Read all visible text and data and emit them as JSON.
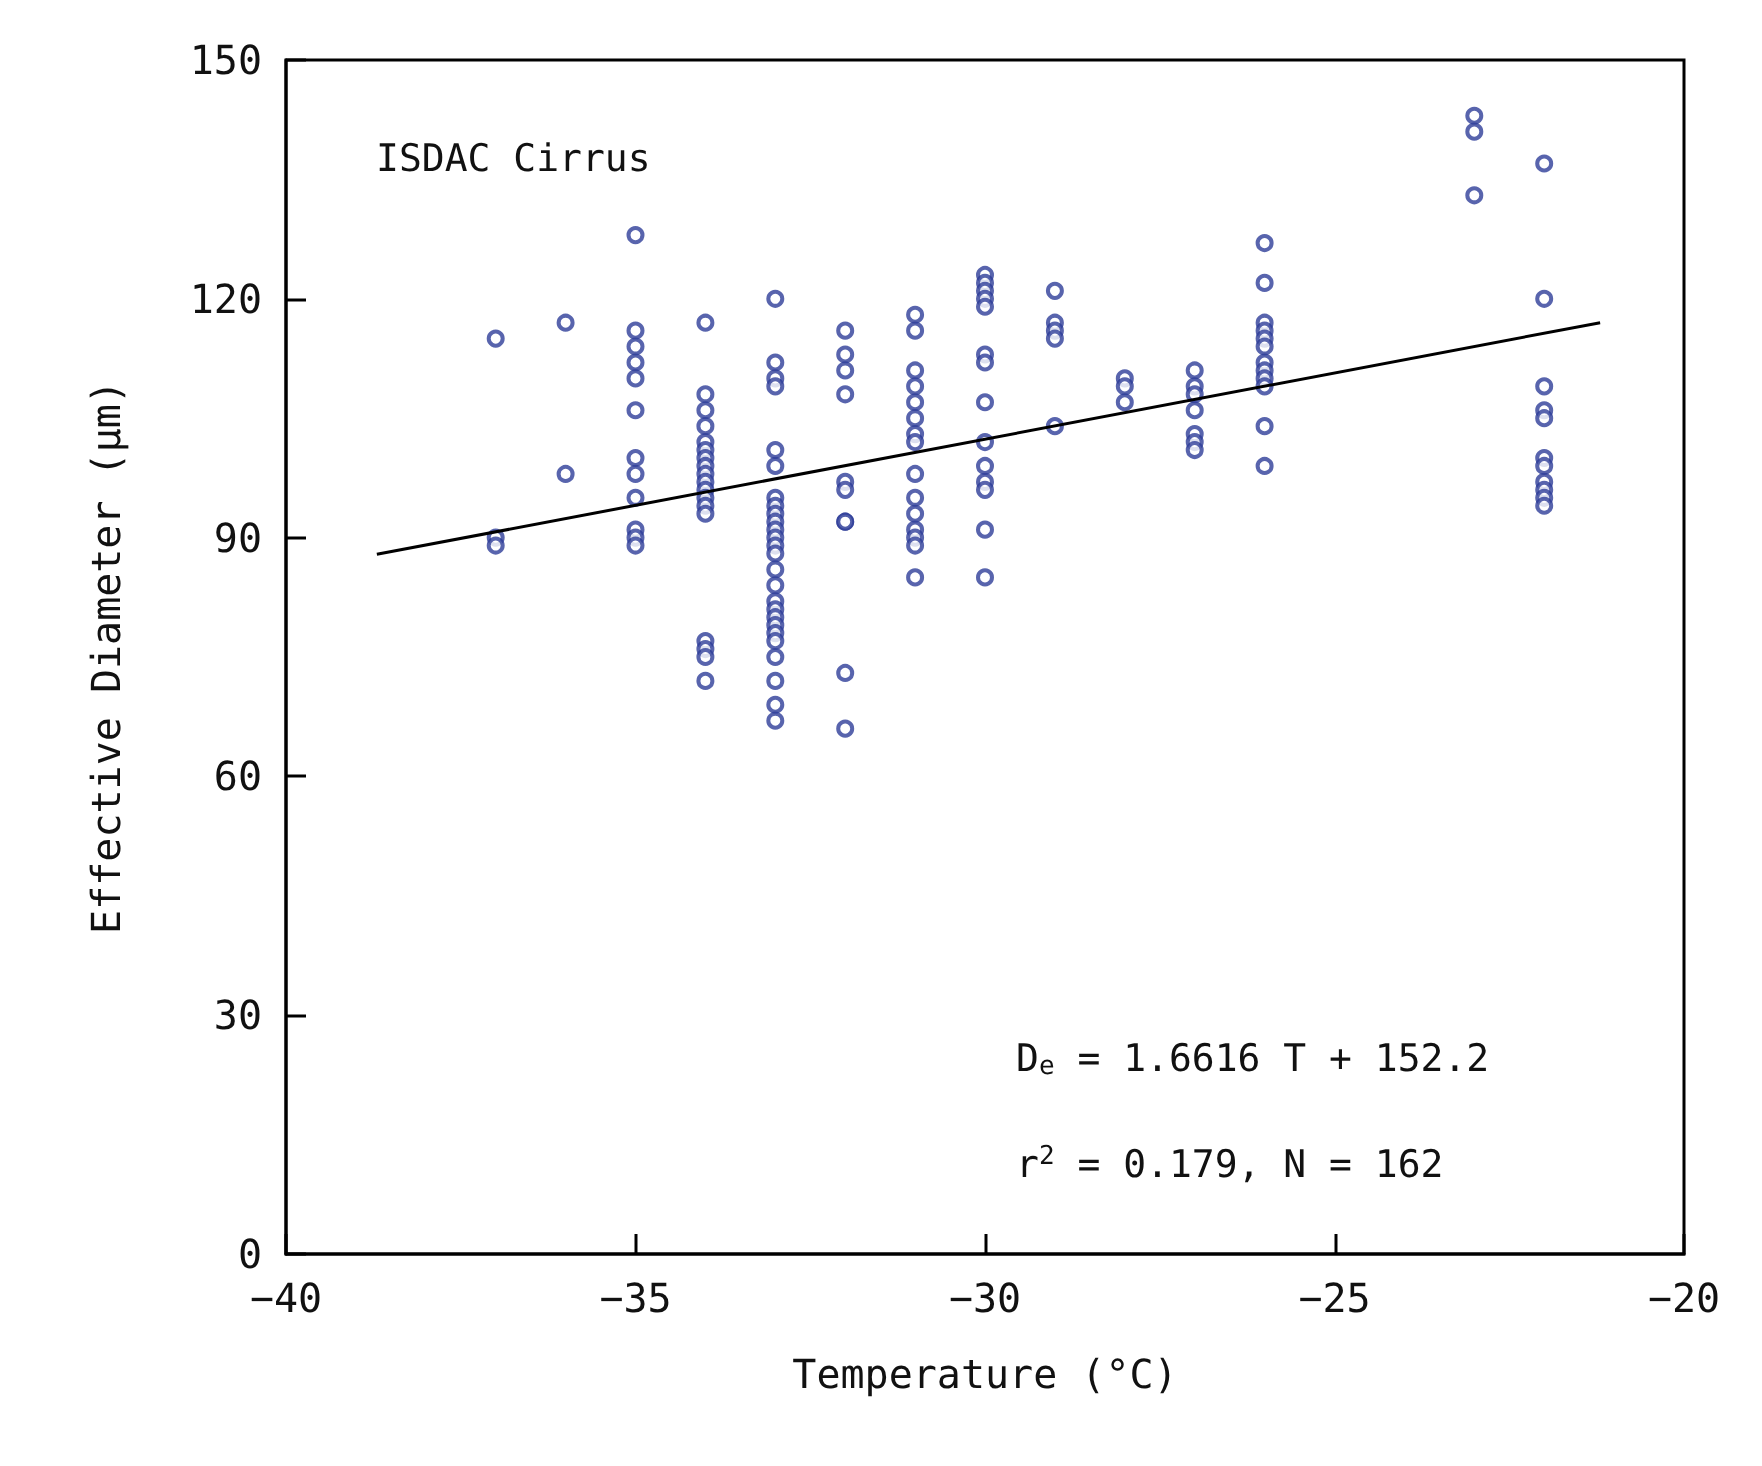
{
  "chart_data": {
    "type": "scatter",
    "xlabel": "Temperature (°C)",
    "ylabel": "Effective Diameter (μm)",
    "annotations": [
      "ISDAC Cirrus",
      "D$_{e}$ = 1.6616 T + 152.2",
      "r$^{2}$ = 0.179, N = 162"
    ],
    "xlim": [
      -40,
      -20
    ],
    "xticks": [
      -40,
      -35,
      -30,
      -25,
      -20
    ],
    "ylim": [
      0,
      150
    ],
    "yticks": [
      0,
      30,
      60,
      90,
      120,
      150
    ],
    "grid": false,
    "marker": "circle",
    "series": [
      {
        "color": "#2e3d98",
        "x": [
          -37,
          -37,
          -37,
          -36,
          -36,
          -35,
          -35,
          -35,
          -35,
          -35,
          -35,
          -35,
          -35,
          -35,
          -35,
          -35,
          -35,
          -34,
          -34,
          -34,
          -34,
          -34,
          -34,
          -34,
          -34,
          -34,
          -34,
          -34,
          -34,
          -34,
          -34,
          -34,
          -34,
          -34,
          -34,
          -33,
          -33,
          -33,
          -33,
          -33,
          -33,
          -33,
          -33,
          -33,
          -33,
          -33,
          -33,
          -33,
          -33,
          -33,
          -33,
          -33,
          -33,
          -33,
          -33,
          -33,
          -33,
          -33,
          -33,
          -33,
          -33,
          -32,
          -32,
          -32,
          -32,
          -32,
          -32,
          -32,
          -32,
          -32,
          -32,
          -31,
          -31,
          -31,
          -31,
          -31,
          -31,
          -31,
          -31,
          -31,
          -31,
          -31,
          -31,
          -31,
          -31,
          -31,
          -30,
          -30,
          -30,
          -30,
          -30,
          -30,
          -30,
          -30,
          -30,
          -30,
          -30,
          -30,
          -30,
          -30,
          -29,
          -29,
          -29,
          -29,
          -29,
          -28,
          -28,
          -28,
          -27,
          -27,
          -27,
          -27,
          -27,
          -27,
          -27,
          -26,
          -26,
          -26,
          -26,
          -26,
          -26,
          -26,
          -26,
          -26,
          -26,
          -26,
          -26,
          -23,
          -23,
          -23,
          -22,
          -22,
          -22,
          -22,
          -22,
          -22,
          -22,
          -22,
          -22,
          -22,
          -22
        ],
        "values": [
          115,
          90,
          89,
          117,
          98,
          128,
          116,
          114,
          112,
          110,
          106,
          100,
          98,
          95,
          91,
          90,
          89,
          117,
          108,
          106,
          104,
          102,
          101,
          100,
          99,
          98,
          97,
          96,
          95,
          94,
          93,
          77,
          76,
          75,
          72,
          120,
          112,
          110,
          109,
          101,
          99,
          95,
          94,
          93,
          92,
          91,
          90,
          89,
          88,
          86,
          84,
          82,
          81,
          80,
          79,
          78,
          77,
          75,
          72,
          69,
          67,
          116,
          113,
          111,
          108,
          97,
          96,
          92,
          92,
          73,
          66,
          118,
          116,
          111,
          109,
          107,
          105,
          103,
          102,
          98,
          95,
          93,
          91,
          90,
          89,
          85,
          123,
          122,
          121,
          120,
          119,
          113,
          112,
          107,
          102,
          99,
          97,
          96,
          91,
          85,
          121,
          117,
          116,
          115,
          104,
          110,
          109,
          107,
          111,
          109,
          108,
          106,
          103,
          102,
          101,
          127,
          122,
          117,
          116,
          115,
          114,
          112,
          111,
          110,
          109,
          104,
          99,
          143,
          141,
          133,
          137,
          120,
          109,
          106,
          105,
          100,
          99,
          97,
          96,
          95,
          94
        ]
      },
      {
        "type": "line",
        "color": "#000000",
        "marker": "none",
        "line_style": "solid",
        "x": [
          -38.7,
          -21.2
        ],
        "values": [
          87.9,
          117.0
        ]
      }
    ]
  }
}
